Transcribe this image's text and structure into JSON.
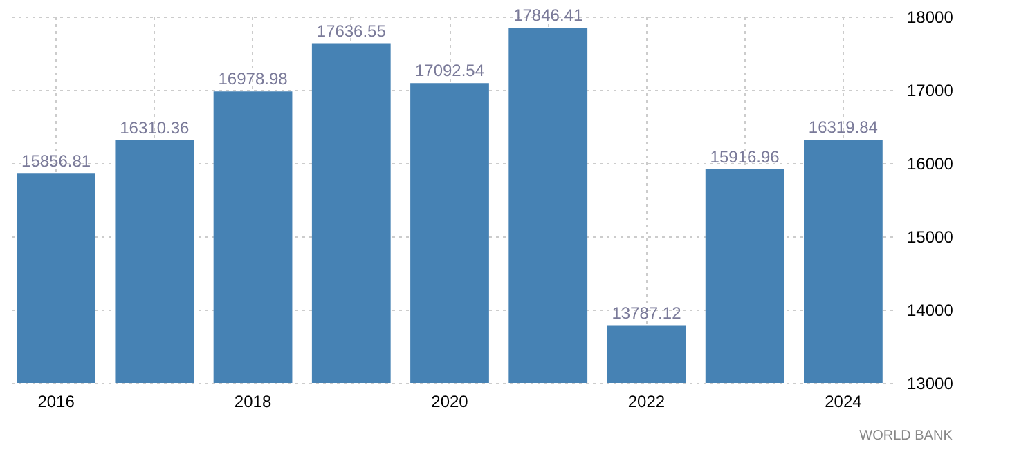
{
  "chart_data": {
    "type": "bar",
    "categories": [
      "2016",
      null,
      "2018",
      null,
      "2020",
      null,
      "2022",
      null,
      "2024"
    ],
    "values": [
      15856.81,
      16310.36,
      16978.98,
      17636.55,
      17092.54,
      17846.41,
      13787.12,
      15916.96,
      16319.84
    ],
    "color": "#4682b4",
    "ylim": [
      13000,
      18000
    ],
    "yticks": [
      13000,
      14000,
      15000,
      16000,
      17000,
      18000
    ],
    "grid": true,
    "data_labels": true,
    "annotations": [
      "WORLD BANK"
    ]
  }
}
